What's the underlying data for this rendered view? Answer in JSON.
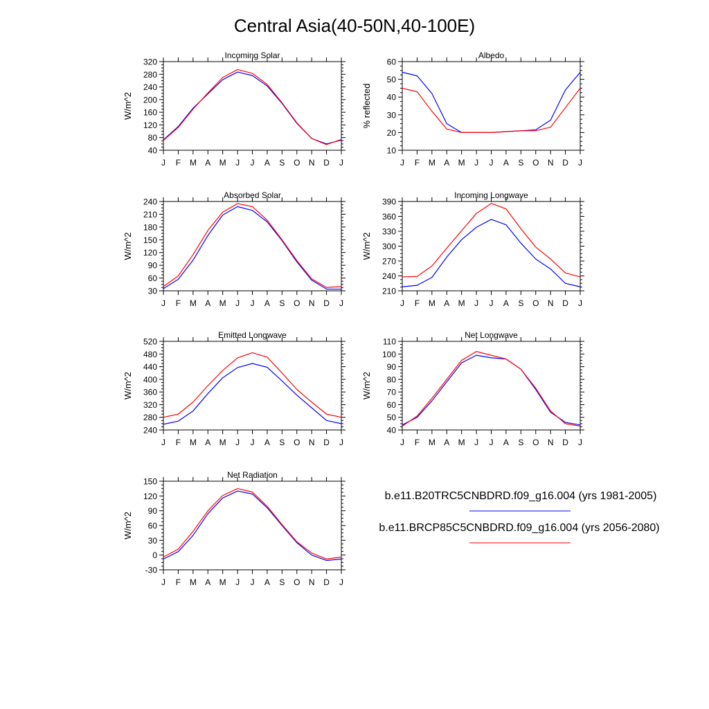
{
  "page": {
    "title": "Central Asia(40-50N,40-100E)"
  },
  "months": [
    "J",
    "F",
    "M",
    "A",
    "M",
    "J",
    "J",
    "A",
    "S",
    "O",
    "N",
    "D",
    "J"
  ],
  "legend": {
    "entries": [
      {
        "label": "b.e11.B20TRC5CNBDRD.f09_g16.004 (yrs 1981-2005)",
        "color": "#0000ff"
      },
      {
        "label": "b.e11.BRCP85C5CNBDRD.f09_g16.004 (yrs 2056-2080)",
        "color": "#ff0000"
      }
    ]
  },
  "chart_data": [
    {
      "type": "line",
      "title": "Incoming Solar",
      "ylabel": "W/m^2",
      "ylim": [
        40,
        320
      ],
      "yticks": [
        40,
        80,
        120,
        160,
        200,
        240,
        280,
        320
      ],
      "series": [
        {
          "color": "#0000ff",
          "values": [
            73,
            115,
            173,
            218,
            263,
            287,
            276,
            243,
            188,
            125,
            77,
            60,
            72
          ]
        },
        {
          "color": "#ff0000",
          "values": [
            71,
            112,
            170,
            221,
            270,
            295,
            283,
            248,
            190,
            127,
            77,
            58,
            74
          ]
        }
      ]
    },
    {
      "type": "line",
      "title": "Albedo",
      "ylabel": "% reflected",
      "ylim": [
        10,
        60
      ],
      "yticks": [
        10,
        20,
        30,
        40,
        50,
        60
      ],
      "series": [
        {
          "color": "#0000ff",
          "values": [
            54,
            52,
            42,
            25,
            20,
            20,
            20,
            20.5,
            21,
            21.5,
            27,
            44,
            54
          ]
        },
        {
          "color": "#ff0000",
          "values": [
            45,
            43,
            32,
            22,
            20,
            20,
            20,
            20.5,
            21,
            21,
            23,
            34,
            45
          ]
        }
      ]
    },
    {
      "type": "line",
      "title": "Absorbed Solar",
      "ylabel": "W/m^2",
      "ylim": [
        30,
        240
      ],
      "yticks": [
        30,
        60,
        90,
        120,
        150,
        180,
        210,
        240
      ],
      "series": [
        {
          "color": "#0000ff",
          "values": [
            35,
            57,
            102,
            160,
            208,
            228,
            219,
            192,
            148,
            98,
            55,
            34,
            34
          ]
        },
        {
          "color": "#ff0000",
          "values": [
            40,
            65,
            115,
            172,
            215,
            235,
            228,
            196,
            150,
            101,
            58,
            38,
            40
          ]
        }
      ]
    },
    {
      "type": "line",
      "title": "Incoming Longwave",
      "ylabel": "W/m^2",
      "ylim": [
        210,
        390
      ],
      "yticks": [
        210,
        240,
        270,
        300,
        330,
        360,
        390
      ],
      "series": [
        {
          "color": "#0000ff",
          "values": [
            218,
            221,
            237,
            278,
            313,
            338,
            354,
            343,
            306,
            274,
            254,
            225,
            218
          ]
        },
        {
          "color": "#ff0000",
          "values": [
            238,
            239,
            260,
            296,
            331,
            366,
            386,
            375,
            335,
            298,
            274,
            246,
            238
          ]
        }
      ]
    },
    {
      "type": "line",
      "title": "Emitted Longwave",
      "ylabel": "W/m^2",
      "ylim": [
        240,
        520
      ],
      "yticks": [
        240,
        280,
        320,
        360,
        400,
        440,
        480,
        520
      ],
      "series": [
        {
          "color": "#0000ff",
          "values": [
            258,
            268,
            300,
            355,
            405,
            437,
            450,
            438,
            395,
            350,
            310,
            270,
            260
          ]
        },
        {
          "color": "#ff0000",
          "values": [
            280,
            290,
            328,
            380,
            428,
            468,
            484,
            470,
            420,
            368,
            328,
            290,
            280
          ]
        }
      ]
    },
    {
      "type": "line",
      "title": "Net Longwave",
      "ylabel": "W/m^2",
      "ylim": [
        40,
        110
      ],
      "yticks": [
        40,
        50,
        60,
        70,
        80,
        90,
        100,
        110
      ],
      "series": [
        {
          "color": "#0000ff",
          "values": [
            44,
            50,
            63,
            78,
            93,
            99,
            97,
            96,
            88,
            72,
            54,
            46,
            44
          ]
        },
        {
          "color": "#ff0000",
          "values": [
            43,
            51,
            65,
            80,
            95,
            102,
            99,
            96,
            88,
            73,
            55,
            45,
            43
          ]
        }
      ]
    },
    {
      "type": "line",
      "title": "Net Radiation",
      "ylabel": "W/m^2",
      "ylim": [
        -30,
        150
      ],
      "yticks": [
        -30,
        0,
        30,
        60,
        90,
        120,
        150
      ],
      "series": [
        {
          "color": "#0000ff",
          "values": [
            -8,
            7,
            40,
            84,
            116,
            130,
            124,
            96,
            60,
            25,
            0,
            -11,
            -8
          ]
        },
        {
          "color": "#ff0000",
          "values": [
            -4,
            12,
            48,
            90,
            121,
            135,
            128,
            99,
            62,
            27,
            4,
            -8,
            -4
          ]
        }
      ]
    }
  ]
}
